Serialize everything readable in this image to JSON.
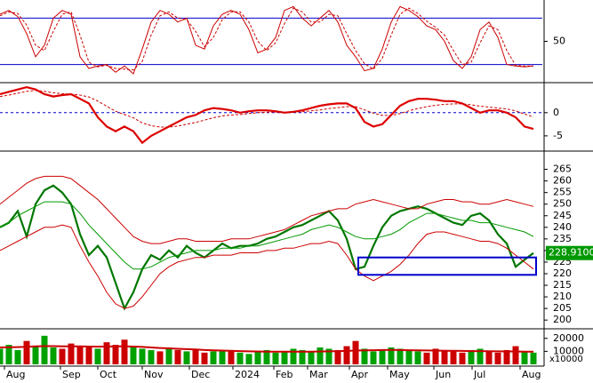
{
  "chart_data": [
    {
      "type": "line",
      "ylim": [
        0,
        100
      ],
      "yticks": [
        50
      ],
      "hlines": [
        80,
        20
      ],
      "hline_color": "#0000cc",
      "series": [
        {
          "color": "#cc0000",
          "style": "solid",
          "values": [
            85,
            90,
            82,
            60,
            30,
            45,
            80,
            90,
            85,
            30,
            15,
            18,
            20,
            10,
            18,
            8,
            40,
            75,
            90,
            85,
            75,
            80,
            45,
            40,
            70,
            85,
            90,
            85,
            65,
            35,
            40,
            55,
            90,
            95,
            80,
            70,
            80,
            90,
            75,
            45,
            30,
            12,
            15,
            40,
            75,
            95,
            90,
            82,
            70,
            65,
            50,
            25,
            15,
            30,
            65,
            75,
            55,
            20,
            18,
            17,
            18
          ]
        },
        {
          "color": "#cc0000",
          "style": "dashed",
          "values": [
            83,
            88,
            86,
            71,
            45,
            38,
            63,
            85,
            88,
            58,
            23,
            17,
            19,
            15,
            14,
            13,
            24,
            58,
            83,
            88,
            80,
            78,
            63,
            43,
            55,
            78,
            88,
            88,
            75,
            50,
            38,
            48,
            73,
            93,
            88,
            75,
            75,
            85,
            83,
            60,
            38,
            21,
            14,
            28,
            58,
            85,
            93,
            86,
            76,
            68,
            58,
            38,
            20,
            23,
            48,
            70,
            65,
            38,
            19,
            18,
            18
          ]
        }
      ]
    },
    {
      "type": "line",
      "ylim": [
        -7.9,
        6.1
      ],
      "yticks": [
        0,
        -5
      ],
      "hlines": [
        0
      ],
      "hline_color": "#0000cc",
      "hline_style": "dashed",
      "series": [
        {
          "color": "#dd0000",
          "style": "thick",
          "values": [
            4,
            4.5,
            5,
            5.5,
            5,
            4,
            3.5,
            3.8,
            4,
            3,
            2,
            -1,
            -3,
            -4,
            -3,
            -4,
            -6.5,
            -5,
            -4,
            -3,
            -2,
            -1,
            -0.5,
            0.5,
            1,
            0.8,
            0.5,
            0,
            0.3,
            0.5,
            0.5,
            0.3,
            0,
            0.2,
            0.5,
            1,
            1.5,
            1.8,
            2,
            2,
            1,
            -2,
            -3,
            -2.5,
            -0.5,
            1.5,
            2.5,
            3,
            3,
            2.8,
            2.5,
            2.5,
            2,
            1,
            0,
            0.5,
            0.5,
            0,
            -1,
            -3,
            -3.5
          ]
        },
        {
          "color": "#cc0000",
          "style": "dashed",
          "values": [
            3.5,
            3.8,
            4.2,
            4.6,
            4.8,
            4.6,
            4.3,
            4.1,
            4,
            3.8,
            3.4,
            2.5,
            1.4,
            0.3,
            -0.4,
            -1.1,
            -2.2,
            -2.8,
            -3.1,
            -3.1,
            -2.9,
            -2.5,
            -2.1,
            -1.6,
            -1.1,
            -0.7,
            -0.5,
            -0.4,
            -0.2,
            0,
            0.1,
            0.1,
            0.1,
            0.1,
            0.2,
            0.4,
            0.6,
            0.9,
            1.1,
            1.3,
            1.3,
            0.6,
            -0.1,
            -0.6,
            -0.6,
            -0.2,
            0.4,
            0.9,
            1.3,
            1.6,
            1.8,
            1.9,
            1.9,
            1.7,
            1.4,
            1.2,
            1,
            0.8,
            0.4,
            -0.3,
            -0.9
          ]
        }
      ]
    },
    {
      "type": "line",
      "ylim": [
        197,
        272.5
      ],
      "yticks": [
        200,
        205,
        210,
        215,
        220,
        225,
        230,
        235,
        240,
        245,
        250,
        255,
        260,
        265
      ],
      "series": [
        {
          "color": "#007700",
          "style": "thick",
          "values": [
            240,
            242,
            247,
            236,
            250,
            256,
            258,
            255,
            250,
            237,
            228,
            232,
            227,
            216,
            205,
            212,
            222,
            228,
            226,
            230,
            227,
            232,
            229,
            227,
            230,
            233,
            231,
            232,
            232,
            233,
            235,
            236,
            238,
            240,
            241,
            243,
            245,
            247,
            243,
            235,
            222,
            223,
            232,
            240,
            245,
            247,
            248,
            249,
            248,
            246,
            244,
            242,
            241,
            245,
            246,
            243,
            237,
            233,
            223,
            226,
            228.91
          ]
        },
        {
          "color": "#cc0000",
          "style": "solid",
          "values": [
            250,
            253,
            256,
            259,
            261,
            262,
            262,
            262,
            261,
            258,
            255,
            252,
            248,
            244,
            240,
            236,
            234,
            233,
            233,
            234,
            235,
            235,
            234,
            234,
            234,
            234,
            235,
            235,
            235,
            236,
            237,
            238,
            239,
            241,
            243,
            245,
            246,
            247,
            248,
            248,
            250,
            251,
            252,
            251,
            250,
            249,
            248,
            248,
            250,
            251,
            252,
            252,
            251,
            251,
            250,
            250,
            251,
            252,
            251,
            250,
            249
          ]
        },
        {
          "color": "#cc0000",
          "style": "solid",
          "values": [
            230,
            232,
            234,
            236,
            238,
            240,
            240,
            241,
            240,
            232,
            225,
            219,
            212,
            207,
            205,
            206,
            210,
            215,
            220,
            223,
            225,
            226,
            227,
            227,
            228,
            228,
            228,
            229,
            229,
            229,
            230,
            230,
            231,
            231,
            232,
            233,
            233,
            234,
            233,
            228,
            222,
            219,
            217,
            219,
            221,
            224,
            228,
            233,
            237,
            238,
            238,
            237,
            236,
            235,
            234,
            234,
            233,
            231,
            228,
            225,
            222
          ]
        },
        {
          "color": "#009900",
          "style": "solid",
          "values": [
            240,
            242,
            245,
            247,
            249,
            251,
            251,
            251,
            250,
            246,
            241,
            237,
            233,
            229,
            225,
            222,
            222,
            223,
            225,
            227,
            228,
            229,
            230,
            230,
            230,
            231,
            231,
            231,
            232,
            232,
            233,
            234,
            235,
            236,
            237,
            239,
            240,
            241,
            240,
            238,
            236,
            235,
            235,
            236,
            237,
            239,
            242,
            244,
            246,
            246,
            245,
            244,
            243,
            243,
            242,
            242,
            241,
            240,
            239,
            238,
            236
          ]
        }
      ],
      "last_price": {
        "value": 228.91,
        "label": "228.9100",
        "color": "#009900"
      },
      "box": {
        "x": [
          40.3,
          60.3
        ],
        "y": [
          227,
          219.5
        ],
        "color": "#0000cc"
      }
    },
    {
      "type": "bar",
      "ylim": [
        0,
        26000
      ],
      "yticks": [
        20000,
        10000
      ],
      "unit_label": "x10000",
      "up_color": "#00a000",
      "down_color": "#cc0000",
      "values": [
        12000,
        15000,
        11000,
        18000,
        14000,
        22000,
        13000,
        12000,
        16000,
        14000,
        13000,
        12000,
        17000,
        15000,
        19000,
        14000,
        12000,
        11000,
        10000,
        13000,
        11000,
        10000,
        12000,
        9000,
        10000,
        11000,
        10000,
        9000,
        8000,
        10000,
        11000,
        9000,
        10000,
        12000,
        11000,
        10000,
        13000,
        12000,
        11000,
        14000,
        18000,
        12000,
        10000,
        11000,
        13000,
        12000,
        11000,
        10000,
        9000,
        12000,
        11000,
        10000,
        9000,
        11000,
        12000,
        10000,
        9000,
        11000,
        14000,
        10000,
        9000
      ],
      "ma": {
        "color": "#cc0000",
        "values": [
          13000,
          13200,
          13300,
          13500,
          13800,
          14000,
          14000,
          13900,
          13800,
          13800,
          13700,
          13600,
          13700,
          13800,
          13900,
          13700,
          13400,
          13000,
          12600,
          12300,
          12000,
          11700,
          11400,
          11000,
          10800,
          10600,
          10400,
          10200,
          10000,
          9900,
          9800,
          9800,
          9700,
          9700,
          9800,
          9800,
          9900,
          10000,
          10100,
          10300,
          10600,
          10800,
          10900,
          11000,
          11100,
          11000,
          10900,
          10800,
          10700,
          10600,
          10500,
          10400,
          10300,
          10200,
          10200,
          10100,
          10000,
          9900,
          9900,
          9800,
          9700
        ]
      },
      "xlim": [
        0,
        61
      ],
      "xticks": [
        {
          "value": 0.5,
          "label": "Aug"
        },
        {
          "value": 6.8,
          "label": "Sep"
        },
        {
          "value": 11,
          "label": "Oct"
        },
        {
          "value": 16,
          "label": "Nov"
        },
        {
          "value": 21.3,
          "label": "Dec"
        },
        {
          "value": 26.2,
          "label": "2024"
        },
        {
          "value": 30.8,
          "label": "Feb"
        },
        {
          "value": 34.6,
          "label": "Mar"
        },
        {
          "value": 39.3,
          "label": "Apr"
        },
        {
          "value": 43.6,
          "label": "May"
        },
        {
          "value": 48.8,
          "label": "Jun"
        },
        {
          "value": 53.1,
          "label": "Jul"
        },
        {
          "value": 58.5,
          "label": "Aug"
        }
      ]
    }
  ]
}
